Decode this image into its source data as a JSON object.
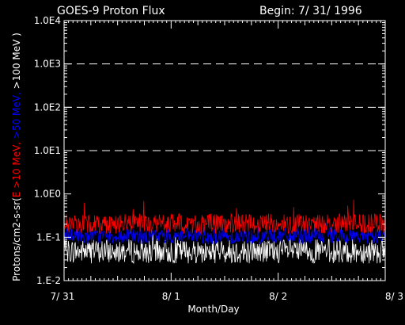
{
  "chart_data": {
    "type": "line",
    "title": "GOES-9 Proton Flux",
    "subtitle": "Begin: 7/ 31/ 1996",
    "xlabel": "Month/Day",
    "ylabel_parts": [
      {
        "text": "Protons/cm2-s-sr(",
        "color": "#ffffff"
      },
      {
        "text": "E >10 MeV, ",
        "color": "#ff0000"
      },
      {
        "text": ">50 MeV, ",
        "color": "#0000ff"
      },
      {
        "text": ">100 MeV )",
        "color": "#ffffff"
      }
    ],
    "y_scale": "log",
    "ylim": [
      0.01,
      10000
    ],
    "yticks": [
      {
        "value": 0.01,
        "label": "1.E-2"
      },
      {
        "value": 0.1,
        "label": "1.E-1"
      },
      {
        "value": 1,
        "label": "1.0E0"
      },
      {
        "value": 10,
        "label": "1.0E1"
      },
      {
        "value": 100,
        "label": "1.0E2"
      },
      {
        "value": 1000,
        "label": "1.0E3"
      },
      {
        "value": 10000,
        "label": "1.0E4"
      }
    ],
    "xlim": [
      0,
      3
    ],
    "xticks": [
      {
        "value": 0,
        "label": "7/ 31"
      },
      {
        "value": 1,
        "label": "8/ 1"
      },
      {
        "value": 2,
        "label": "8/ 2"
      },
      {
        "value": 3,
        "label": "8/ 3"
      }
    ],
    "threshold_lines": [
      10,
      100,
      1000
    ],
    "grid": false,
    "background": "#000000",
    "axis_color": "#ffffff",
    "series": [
      {
        "name": "E >10 MeV",
        "color": "#ff0000",
        "typical_min": 0.12,
        "typical_max": 0.35,
        "peak": 0.8
      },
      {
        "name": ">50 MeV",
        "color": "#0000ff",
        "typical_min": 0.07,
        "typical_max": 0.16,
        "peak": 0.22
      },
      {
        "name": ">100 MeV",
        "color": "#ffffff",
        "typical_min": 0.025,
        "typical_max": 0.09,
        "peak": 0.12
      }
    ]
  }
}
